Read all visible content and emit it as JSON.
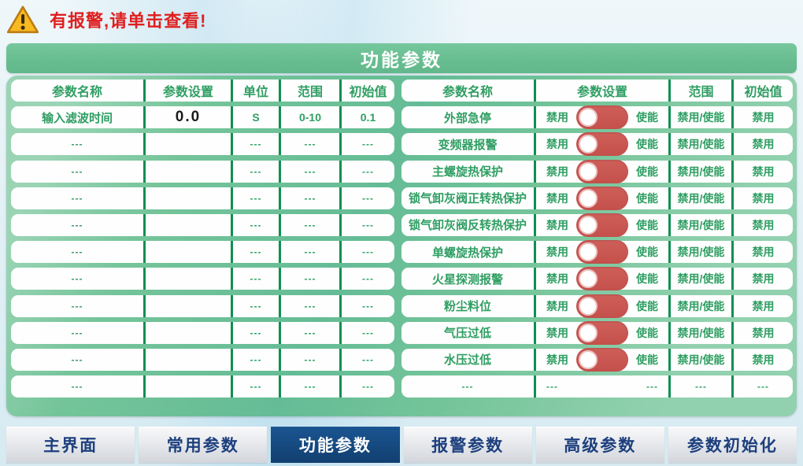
{
  "alarm": {
    "text": "有报警,请单击查看!"
  },
  "page_title": "功能参数",
  "left_table": {
    "headers": [
      "参数名称",
      "参数设置",
      "单位",
      "范围",
      "初始值"
    ],
    "rows": [
      {
        "name": "输入滤波时间",
        "setting": "0.0",
        "unit": "S",
        "range": "0-10",
        "initial": "0.1",
        "editable": true
      },
      {
        "name": "---",
        "setting": "",
        "unit": "---",
        "range": "---",
        "initial": "---",
        "editable": false
      },
      {
        "name": "---",
        "setting": "",
        "unit": "---",
        "range": "---",
        "initial": "---",
        "editable": false
      },
      {
        "name": "---",
        "setting": "",
        "unit": "---",
        "range": "---",
        "initial": "---",
        "editable": false
      },
      {
        "name": "---",
        "setting": "",
        "unit": "---",
        "range": "---",
        "initial": "---",
        "editable": false
      },
      {
        "name": "---",
        "setting": "",
        "unit": "---",
        "range": "---",
        "initial": "---",
        "editable": false
      },
      {
        "name": "---",
        "setting": "",
        "unit": "---",
        "range": "---",
        "initial": "---",
        "editable": false
      },
      {
        "name": "---",
        "setting": "",
        "unit": "---",
        "range": "---",
        "initial": "---",
        "editable": false
      },
      {
        "name": "---",
        "setting": "",
        "unit": "---",
        "range": "---",
        "initial": "---",
        "editable": false
      },
      {
        "name": "---",
        "setting": "",
        "unit": "---",
        "range": "---",
        "initial": "---",
        "editable": false
      },
      {
        "name": "---",
        "setting": "",
        "unit": "---",
        "range": "---",
        "initial": "---",
        "editable": false
      }
    ]
  },
  "right_table": {
    "headers": [
      "参数名称",
      "参数设置",
      "范围",
      "初始值"
    ],
    "rows": [
      {
        "name": "外部急停",
        "off_label": "禁用",
        "on_label": "使能",
        "toggle": "off",
        "range": "禁用/使能",
        "initial": "禁用"
      },
      {
        "name": "变频器报警",
        "off_label": "禁用",
        "on_label": "使能",
        "toggle": "off",
        "range": "禁用/使能",
        "initial": "禁用"
      },
      {
        "name": "主螺旋热保护",
        "off_label": "禁用",
        "on_label": "使能",
        "toggle": "off",
        "range": "禁用/使能",
        "initial": "禁用"
      },
      {
        "name": "锁气卸灰阀正转热保护",
        "off_label": "禁用",
        "on_label": "使能",
        "toggle": "off",
        "range": "禁用/使能",
        "initial": "禁用"
      },
      {
        "name": "锁气卸灰阀反转热保护",
        "off_label": "禁用",
        "on_label": "使能",
        "toggle": "off",
        "range": "禁用/使能",
        "initial": "禁用"
      },
      {
        "name": "单螺旋热保护",
        "off_label": "禁用",
        "on_label": "使能",
        "toggle": "off",
        "range": "禁用/使能",
        "initial": "禁用"
      },
      {
        "name": "火星探测报警",
        "off_label": "禁用",
        "on_label": "使能",
        "toggle": "off",
        "range": "禁用/使能",
        "initial": "禁用"
      },
      {
        "name": "粉尘料位",
        "off_label": "禁用",
        "on_label": "使能",
        "toggle": "off",
        "range": "禁用/使能",
        "initial": "禁用"
      },
      {
        "name": "气压过低",
        "off_label": "禁用",
        "on_label": "使能",
        "toggle": "off",
        "range": "禁用/使能",
        "initial": "禁用"
      },
      {
        "name": "水压过低",
        "off_label": "禁用",
        "on_label": "使能",
        "toggle": "off",
        "range": "禁用/使能",
        "initial": "禁用"
      },
      {
        "name": "---",
        "off_label": "---",
        "on_label": "---",
        "toggle": null,
        "range": "---",
        "initial": "---"
      }
    ]
  },
  "tabs": [
    {
      "label": "主界面",
      "active": false
    },
    {
      "label": "常用参数",
      "active": false
    },
    {
      "label": "功能参数",
      "active": true
    },
    {
      "label": "报警参数",
      "active": false
    },
    {
      "label": "高级参数",
      "active": false
    },
    {
      "label": "参数初始化",
      "active": false
    }
  ],
  "colors": {
    "container_green": "#74c499",
    "divider_green": "#0f8f52",
    "text_green": "#2f9e63",
    "toggle_red": "#c85450",
    "alarm_red": "#e01f1f",
    "tab_active_bg": "#14477c",
    "tab_text": "#1d3f7d",
    "value_black": "#1a1a1a"
  }
}
